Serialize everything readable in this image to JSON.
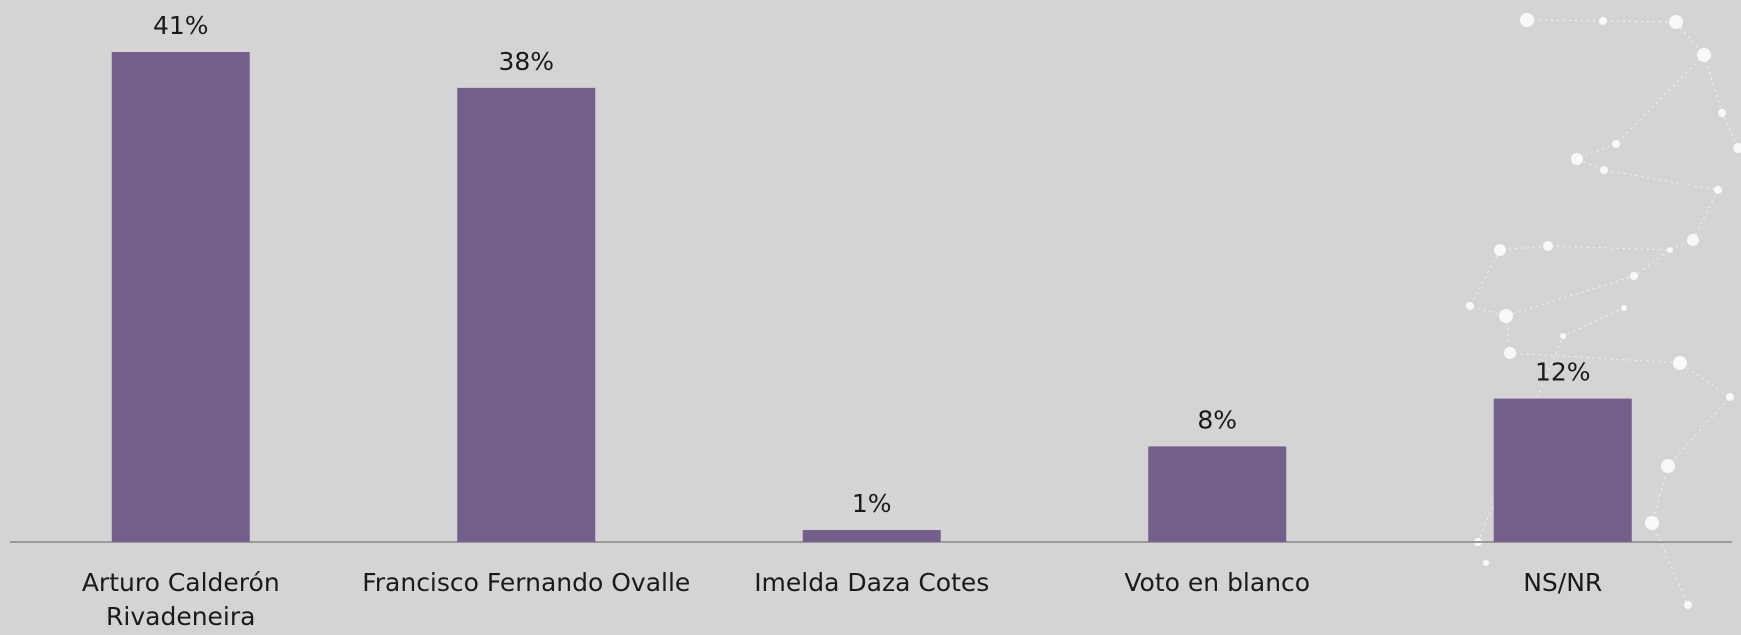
{
  "chart_data": {
    "type": "bar",
    "categories": [
      "Arturo Calderón Rivadeneira",
      "Francisco Fernando Ovalle",
      "Imelda Daza Cotes",
      "Voto en blanco",
      "NS/NR"
    ],
    "values": [
      41,
      38,
      1,
      8,
      12
    ],
    "value_labels": [
      "41%",
      "38%",
      "1%",
      "8%",
      "12%"
    ],
    "color": "#745f8c"
  }
}
